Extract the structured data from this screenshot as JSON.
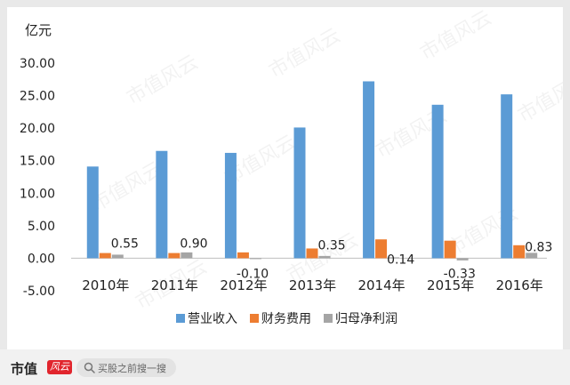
{
  "chart_data": {
    "type": "bar",
    "unit_label": "亿元",
    "categories": [
      "2010年",
      "2011年",
      "2012年",
      "2013年",
      "2014年",
      "2015年",
      "2016年"
    ],
    "ylim": [
      -5,
      30
    ],
    "yticks": [
      "-5.00",
      "0.00",
      "5.00",
      "10.00",
      "15.00",
      "20.00",
      "25.00",
      "30.00"
    ],
    "grid": false,
    "legend_position": "bottom",
    "series": [
      {
        "name": "营业收入",
        "color": "#5b9bd5",
        "values": [
          14.1,
          16.5,
          16.2,
          20.1,
          27.2,
          23.6,
          25.2
        ]
      },
      {
        "name": "财务费用",
        "color": "#ed7d31",
        "values": [
          0.8,
          0.8,
          0.9,
          1.5,
          2.9,
          2.7,
          2.0
        ]
      },
      {
        "name": "归母净利润",
        "color": "#a5a5a5",
        "values": [
          0.55,
          0.9,
          -0.1,
          0.35,
          0.14,
          -0.33,
          0.83
        ]
      }
    ],
    "data_labels": [
      "0.55",
      "0.90",
      "-0.10",
      "0.35",
      "0.14",
      "-0.33",
      "0.83"
    ]
  },
  "watermark": "市值风云",
  "footer": {
    "brand": "市值",
    "brand_mark": "风云",
    "search_placeholder": "买股之前搜一搜",
    "search_icon": "search-icon"
  }
}
